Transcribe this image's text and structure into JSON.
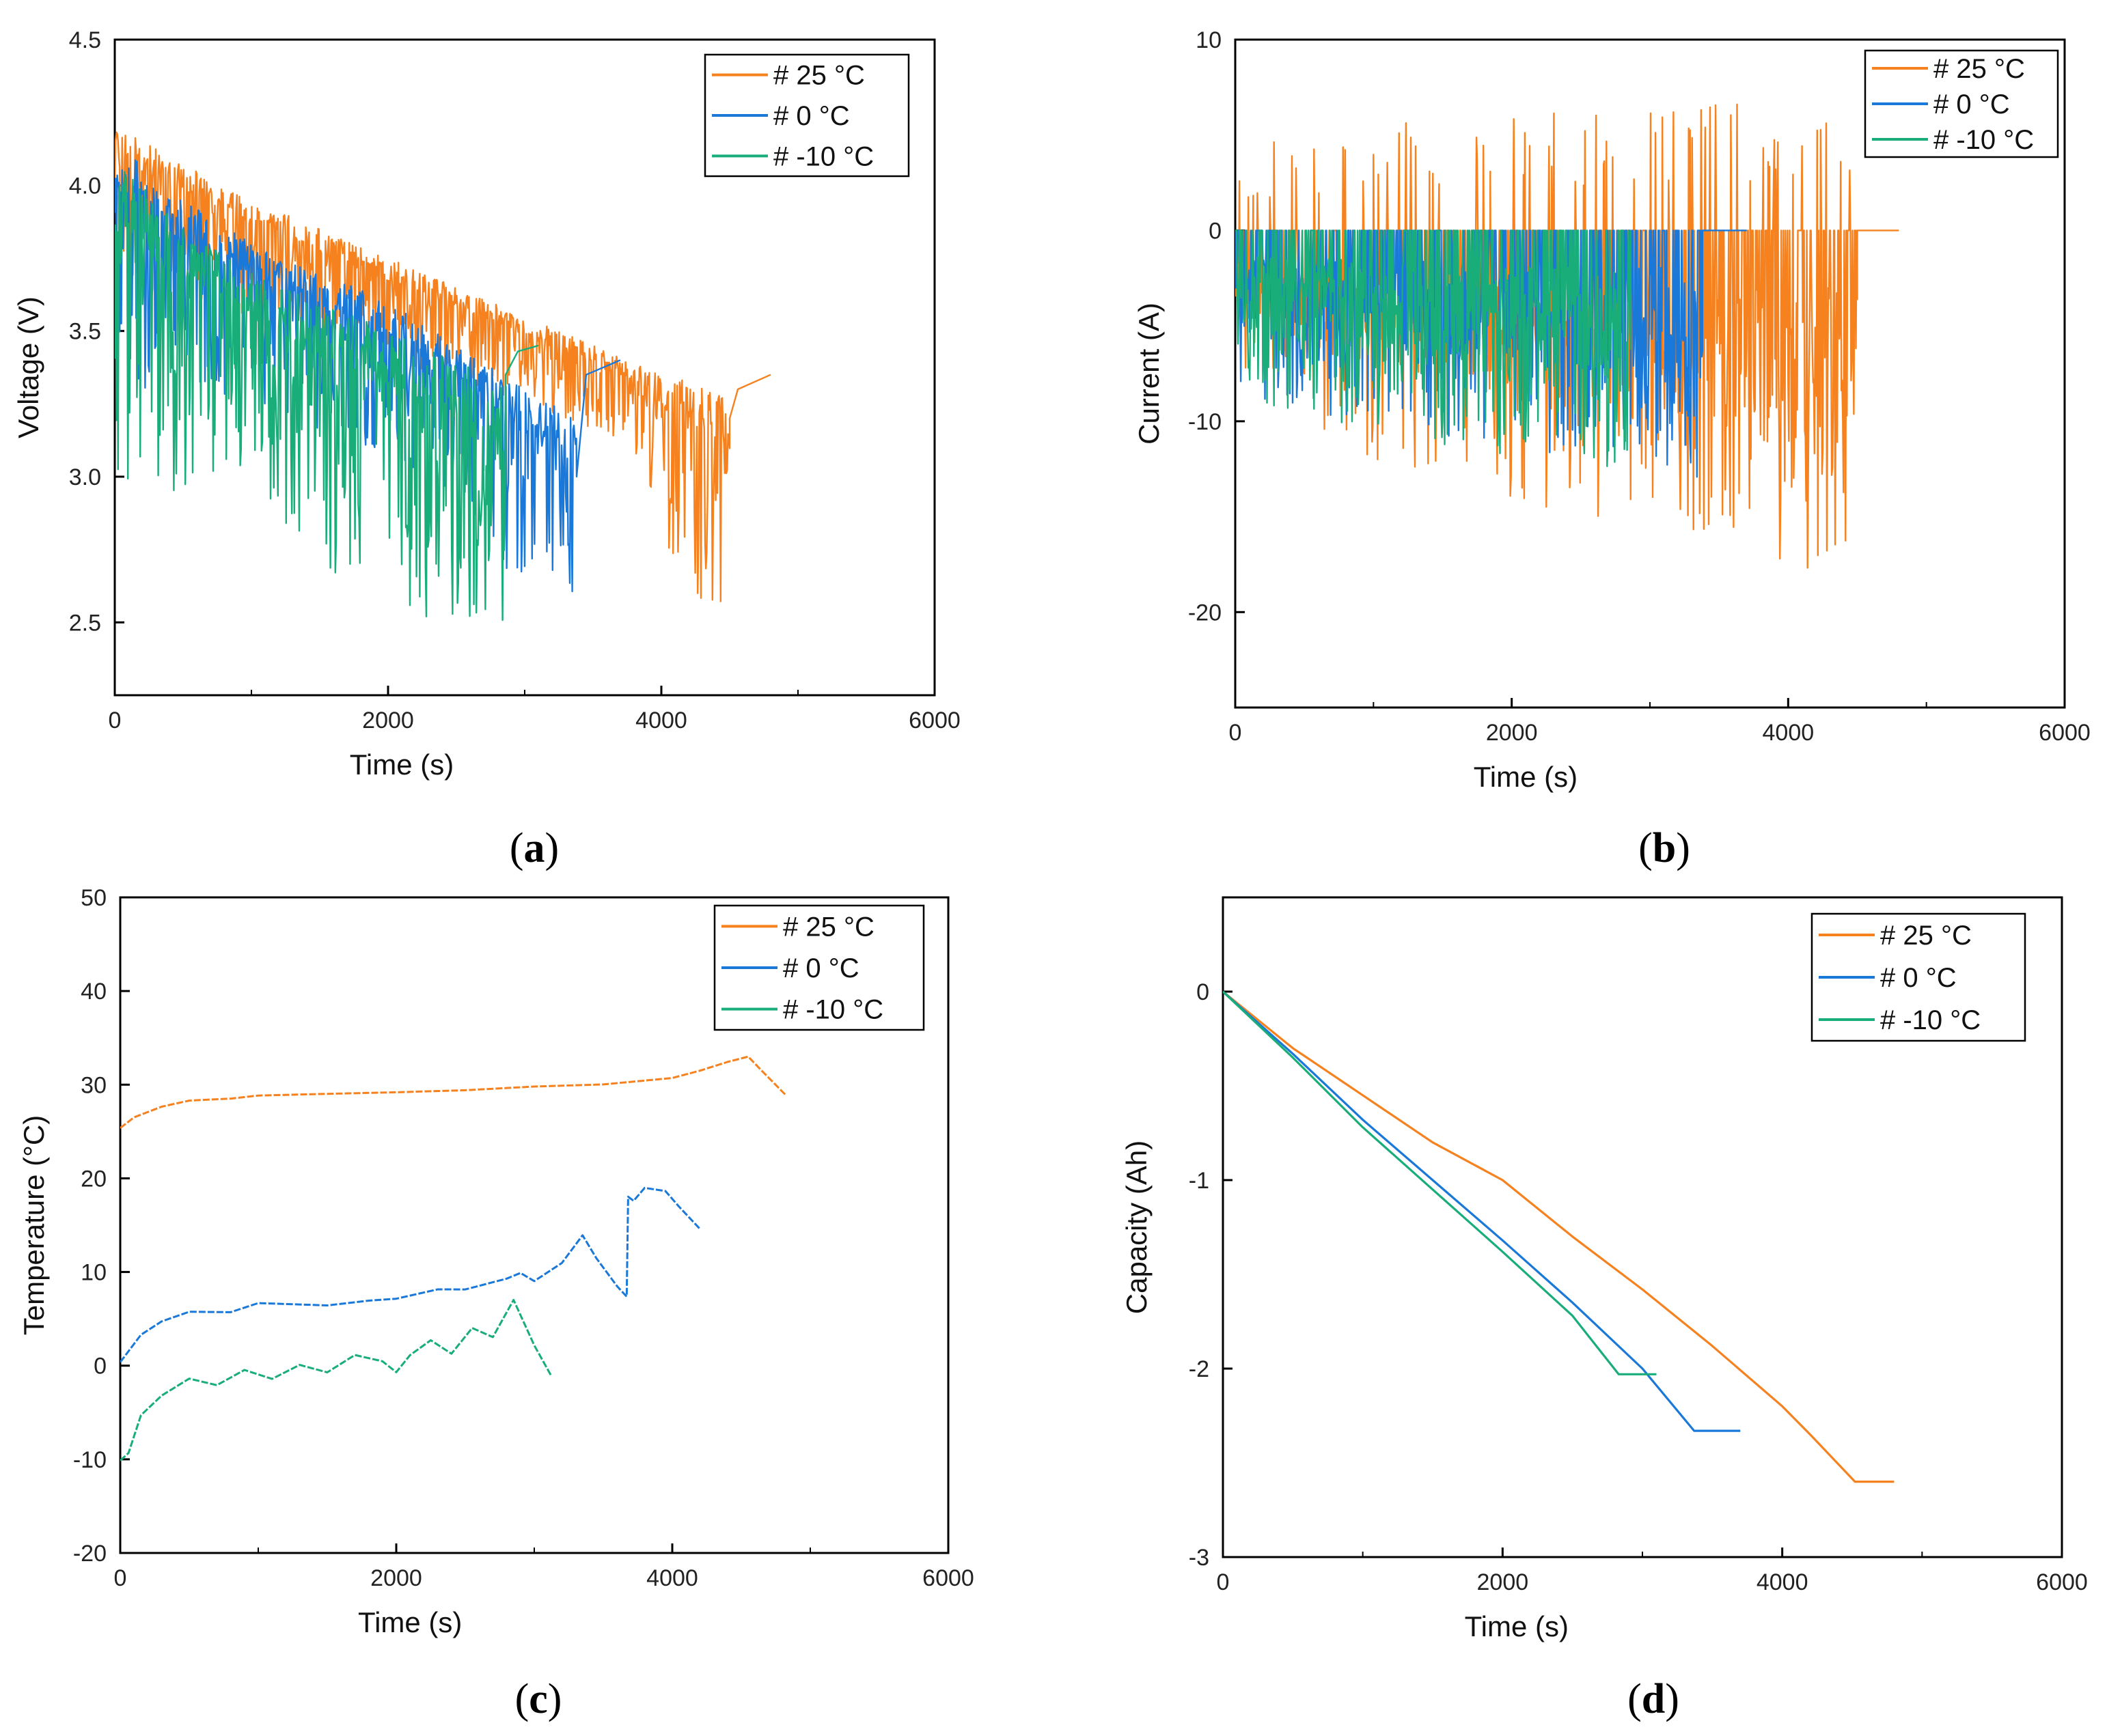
{
  "colors": {
    "c25": "#f5821f",
    "c0": "#1a78d8",
    "cm10": "#19ad7a"
  },
  "legend": [
    {
      "key": "c25",
      "label": "#  25 °C"
    },
    {
      "key": "c0",
      "label": "#  0 °C"
    },
    {
      "key": "cm10",
      "label": "# -10 °C"
    }
  ],
  "chart_data": [
    {
      "id": "a",
      "panel_label": "a",
      "type": "line",
      "xlabel": "Time (s)",
      "ylabel": "Voltage (V)",
      "xlim": [
        0,
        6000
      ],
      "ylim": [
        2.25,
        4.5
      ],
      "xticks": [
        0,
        2000,
        4000,
        6000
      ],
      "yticks": [
        2.5,
        3.0,
        3.5,
        4.0,
        4.5
      ],
      "ytick_labels": [
        "2.5",
        "3.0",
        "3.5",
        "4.0",
        "4.5"
      ],
      "legend_position": "top-right",
      "series": [
        {
          "name": "#  25 °C",
          "color_key": "c25",
          "pattern": "spiky",
          "base": [
            [
              0,
              4.2
            ],
            [
              1000,
              3.95
            ],
            [
              2000,
              3.75
            ],
            [
              3000,
              3.55
            ],
            [
              3500,
              3.45
            ],
            [
              4000,
              3.35
            ],
            [
              4400,
              3.3
            ],
            [
              4500,
              3.25
            ]
          ],
          "dips": [
            [
              0,
              3.7
            ],
            [
              1000,
              3.55
            ],
            [
              2000,
              3.4
            ],
            [
              3000,
              3.25
            ],
            [
              3800,
              3.1
            ],
            [
              4200,
              2.55
            ],
            [
              4500,
              2.5
            ]
          ],
          "rest": [
            [
              4500,
              3.2
            ],
            [
              4560,
              3.3
            ],
            [
              4800,
              3.35
            ]
          ]
        },
        {
          "name": "#  0 °C",
          "color_key": "c0",
          "pattern": "spiky",
          "base": [
            [
              0,
              4.15
            ],
            [
              500,
              3.95
            ],
            [
              1000,
              3.8
            ],
            [
              1500,
              3.7
            ],
            [
              2000,
              3.6
            ],
            [
              2500,
              3.45
            ],
            [
              3000,
              3.3
            ],
            [
              3380,
              3.2
            ]
          ],
          "dips": [
            [
              0,
              3.3
            ],
            [
              1000,
              3.25
            ],
            [
              2000,
              3.05
            ],
            [
              2600,
              2.9
            ],
            [
              3100,
              2.5
            ],
            [
              3380,
              2.5
            ]
          ],
          "rest": [
            [
              3380,
              3.0
            ],
            [
              3450,
              3.35
            ],
            [
              3700,
              3.4
            ]
          ]
        },
        {
          "name": "# -10 °C",
          "color_key": "cm10",
          "pattern": "spiky",
          "base": [
            [
              0,
              4.1
            ],
            [
              500,
              3.85
            ],
            [
              1000,
              3.7
            ],
            [
              1500,
              3.6
            ],
            [
              2000,
              3.5
            ],
            [
              2500,
              3.4
            ],
            [
              2860,
              3.3
            ]
          ],
          "dips": [
            [
              0,
              2.95
            ],
            [
              500,
              2.95
            ],
            [
              1000,
              3.0
            ],
            [
              1550,
              2.65
            ],
            [
              2100,
              2.5
            ],
            [
              2860,
              2.5
            ]
          ],
          "rest": [
            [
              2860,
              3.35
            ],
            [
              2950,
              3.43
            ],
            [
              3100,
              3.45
            ]
          ]
        }
      ]
    },
    {
      "id": "b",
      "panel_label": "b",
      "type": "line",
      "xlabel": "Time (s)",
      "ylabel": "Current (A)",
      "xlim": [
        0,
        6000
      ],
      "ylim": [
        -25,
        10
      ],
      "xticks": [
        0,
        2000,
        4000,
        6000
      ],
      "yticks": [
        -20,
        -10,
        0,
        10
      ],
      "ytick_labels": [
        "-20",
        "-10",
        "0",
        "10"
      ],
      "legend_position": "top-right",
      "series": [
        {
          "name": "#  25 °C",
          "color_key": "c25",
          "pattern": "current",
          "pos": [
            [
              0,
              4.5
            ],
            [
              1000,
              6.0
            ],
            [
              2000,
              6.5
            ],
            [
              3000,
              7.0
            ],
            [
              4000,
              7.3
            ],
            [
              4500,
              6.0
            ]
          ],
          "neg": [
            [
              0,
              -8
            ],
            [
              1000,
              -12
            ],
            [
              2000,
              -14
            ],
            [
              3000,
              -16
            ],
            [
              4000,
              -19
            ],
            [
              4500,
              -16
            ]
          ],
          "end": 4500,
          "rest_end": 4800
        },
        {
          "name": "#  0 °C",
          "color_key": "c0",
          "pattern": "current",
          "pos": [
            [
              0,
              0
            ],
            [
              3380,
              0
            ]
          ],
          "neg": [
            [
              0,
              -9
            ],
            [
              1000,
              -10
            ],
            [
              2000,
              -11.5
            ],
            [
              3000,
              -13
            ],
            [
              3380,
              -13
            ]
          ],
          "end": 3380,
          "rest_end": 3700
        },
        {
          "name": "# -10 °C",
          "color_key": "cm10",
          "pattern": "current",
          "pos": [
            [
              0,
              0
            ],
            [
              2860,
              0
            ]
          ],
          "neg": [
            [
              0,
              -9
            ],
            [
              1000,
              -10.5
            ],
            [
              2000,
              -12
            ],
            [
              2860,
              -13
            ]
          ],
          "end": 2860,
          "rest_end": 2860
        }
      ]
    },
    {
      "id": "c",
      "panel_label": "c",
      "type": "line",
      "xlabel": "Time (s)",
      "ylabel": "Temperature (°C)",
      "xlim": [
        0,
        6000
      ],
      "ylim": [
        -20,
        50
      ],
      "xticks": [
        0,
        2000,
        4000,
        6000
      ],
      "yticks": [
        -20,
        -10,
        0,
        10,
        20,
        30,
        40,
        50
      ],
      "ytick_labels": [
        "-20",
        "-10",
        "0",
        "10",
        "20",
        "30",
        "40",
        "50"
      ],
      "legend_position": "top-right",
      "series": [
        {
          "name": "#  25 °C",
          "color_key": "c25",
          "points": [
            [
              0,
              25.5
            ],
            [
              100,
              26.5
            ],
            [
              300,
              27.8
            ],
            [
              500,
              28.2
            ],
            [
              800,
              28.6
            ],
            [
              1000,
              28.8
            ],
            [
              1500,
              29.0
            ],
            [
              2000,
              29.3
            ],
            [
              2500,
              29.6
            ],
            [
              3000,
              29.9
            ],
            [
              3500,
              30.3
            ],
            [
              4000,
              30.9
            ],
            [
              4200,
              31.5
            ],
            [
              4400,
              32.5
            ],
            [
              4550,
              32.8
            ],
            [
              4650,
              31.5
            ],
            [
              4820,
              29.0
            ]
          ]
        },
        {
          "name": "#  0 °C",
          "color_key": "c0",
          "points": [
            [
              0,
              0.5
            ],
            [
              150,
              3.5
            ],
            [
              300,
              5.0
            ],
            [
              500,
              5.5
            ],
            [
              800,
              6.0
            ],
            [
              1000,
              6.5
            ],
            [
              1500,
              6.4
            ],
            [
              1800,
              6.8
            ],
            [
              2000,
              7.0
            ],
            [
              2300,
              8.0
            ],
            [
              2500,
              8.3
            ],
            [
              2800,
              9.0
            ],
            [
              2900,
              10.0
            ],
            [
              3000,
              9.3
            ],
            [
              3200,
              11.0
            ],
            [
              3350,
              13.8
            ],
            [
              3450,
              11.5
            ],
            [
              3600,
              8.5
            ],
            [
              3670,
              7.2
            ],
            [
              3680,
              18.0
            ],
            [
              3720,
              17.5
            ],
            [
              3800,
              19.0
            ],
            [
              3950,
              18.6
            ],
            [
              4050,
              17.0
            ],
            [
              4200,
              14.5
            ]
          ]
        },
        {
          "name": "# -10 °C",
          "color_key": "cm10",
          "points": [
            [
              0,
              -10.0
            ],
            [
              60,
              -9.5
            ],
            [
              150,
              -5.5
            ],
            [
              300,
              -3.0
            ],
            [
              500,
              -1.5
            ],
            [
              700,
              -1.8
            ],
            [
              900,
              -0.5
            ],
            [
              1100,
              -1.2
            ],
            [
              1300,
              0.2
            ],
            [
              1500,
              -0.5
            ],
            [
              1700,
              1.2
            ],
            [
              1900,
              0.3
            ],
            [
              2000,
              -0.5
            ],
            [
              2100,
              1.0
            ],
            [
              2250,
              3.0
            ],
            [
              2400,
              1.0
            ],
            [
              2550,
              4.0
            ],
            [
              2700,
              3.0
            ],
            [
              2850,
              6.8
            ],
            [
              3000,
              2.0
            ],
            [
              3120,
              -1.0
            ]
          ]
        }
      ]
    },
    {
      "id": "d",
      "panel_label": "d",
      "type": "line",
      "xlabel": "Time (s)",
      "ylabel": "Capacity (Ah)",
      "xlim": [
        0,
        6000
      ],
      "ylim": [
        -3,
        0.5
      ],
      "xticks": [
        0,
        2000,
        4000,
        6000
      ],
      "yticks": [
        -3,
        -2,
        -1,
        0
      ],
      "ytick_labels": [
        "-3",
        "-2",
        "-1",
        "0"
      ],
      "legend_position": "top-right",
      "series": [
        {
          "name": "#  25 °C",
          "color_key": "c25",
          "points": [
            [
              0,
              0
            ],
            [
              500,
              -0.3
            ],
            [
              1000,
              -0.55
            ],
            [
              1500,
              -0.8
            ],
            [
              2000,
              -1.0
            ],
            [
              2500,
              -1.3
            ],
            [
              3000,
              -1.58
            ],
            [
              3500,
              -1.88
            ],
            [
              4000,
              -2.2
            ],
            [
              4200,
              -2.35
            ],
            [
              4520,
              -2.6
            ],
            [
              4800,
              -2.6
            ]
          ]
        },
        {
          "name": "#  0 °C",
          "color_key": "c0",
          "points": [
            [
              0,
              0
            ],
            [
              500,
              -0.33
            ],
            [
              1000,
              -0.68
            ],
            [
              1500,
              -1.0
            ],
            [
              2000,
              -1.32
            ],
            [
              2500,
              -1.65
            ],
            [
              3000,
              -2.0
            ],
            [
              3370,
              -2.33
            ],
            [
              3700,
              -2.33
            ]
          ]
        },
        {
          "name": "# -10 °C",
          "color_key": "cm10",
          "points": [
            [
              0,
              0
            ],
            [
              500,
              -0.35
            ],
            [
              1000,
              -0.72
            ],
            [
              1500,
              -1.05
            ],
            [
              2000,
              -1.38
            ],
            [
              2500,
              -1.72
            ],
            [
              2830,
              -2.03
            ],
            [
              3100,
              -2.03
            ]
          ]
        }
      ]
    }
  ]
}
